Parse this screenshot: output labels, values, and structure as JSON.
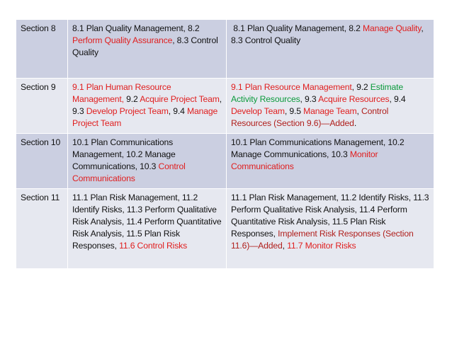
{
  "rows": [
    {
      "section": "Section 8",
      "old": [
        {
          "t": "8.1 Plan Quality Management, 8.2 ",
          "c": "k"
        },
        {
          "t": "Perform Quality Assurance",
          "c": "r"
        },
        {
          "t": ", 8.3 Control Quality",
          "c": "k"
        }
      ],
      "new": [
        {
          "t": " 8.1 Plan Quality Management, 8.2 ",
          "c": "k"
        },
        {
          "t": "Manage Quality",
          "c": "r"
        },
        {
          "t": ", 8.3 Control Quality",
          "c": "k"
        }
      ]
    },
    {
      "section": "Section 9",
      "old": [
        {
          "t": "9.1 Plan Human Resource Management, ",
          "c": "r"
        },
        {
          "t": "9.2 ",
          "c": "k"
        },
        {
          "t": "Acquire Project Team",
          "c": "r"
        },
        {
          "t": ", 9.3 ",
          "c": "k"
        },
        {
          "t": "Develop Project Team",
          "c": "r"
        },
        {
          "t": ", 9.4 ",
          "c": "k"
        },
        {
          "t": "Manage Project Team",
          "c": "r"
        }
      ],
      "new": [
        {
          "t": "9.1 Plan Resource Management",
          "c": "r"
        },
        {
          "t": ", 9.2 ",
          "c": "k"
        },
        {
          "t": "Estimate Activity Resources",
          "c": "g"
        },
        {
          "t": ", 9.3 ",
          "c": "k"
        },
        {
          "t": "Acquire Resources",
          "c": "r"
        },
        {
          "t": ", 9.4 ",
          "c": "k"
        },
        {
          "t": "Develop Team",
          "c": "r"
        },
        {
          "t": ", 9.5 ",
          "c": "k"
        },
        {
          "t": "Manage Team",
          "c": "r"
        },
        {
          "t": ", ",
          "c": "k"
        },
        {
          "t": "Control Resources (Section 9.6)—Added",
          "c": "d"
        },
        {
          "t": ".",
          "c": "k"
        }
      ]
    },
    {
      "section": "Section 10",
      "old": [
        {
          "t": "10.1 Plan Communications Management, 10.2 Manage Communications, 10.3 ",
          "c": "k"
        },
        {
          "t": "Control Communications",
          "c": "r"
        }
      ],
      "new": [
        {
          "t": "10.1 Plan Communications Management, 10.2 Manage Communications, 10.3 ",
          "c": "k"
        },
        {
          "t": "Monitor Communications",
          "c": "r"
        }
      ]
    },
    {
      "section": "Section 11",
      "old": [
        {
          "t": "11.1 Plan Risk Management, 11.2 Identify Risks, 11.3 Perform Qualitative Risk Analysis, 11.4 Perform Quantitative Risk Analysis, 11.5 Plan Risk Responses, ",
          "c": "k"
        },
        {
          "t": "11.6 Control Risks",
          "c": "r"
        }
      ],
      "new": [
        {
          "t": "11.1 Plan Risk Management, 11.2 Identify Risks, 11.3 Perform Qualitative Risk Analysis, 11.4 Perform Quantitative Risk Analysis, 11.5 Plan Risk Responses, ",
          "c": "k"
        },
        {
          "t": "Implement Risk Responses (Section 11.6)—Added",
          "c": "d"
        },
        {
          "t": ", ",
          "c": "k"
        },
        {
          "t": "11.7 Monitor Risks",
          "c": "r"
        }
      ]
    }
  ],
  "colors": {
    "k": "#111111",
    "r": "#e01e1e",
    "g": "#0c9a3c",
    "d": "#b0201d",
    "row_dark": "#cbcfe1",
    "row_light": "#e6e8f0"
  }
}
